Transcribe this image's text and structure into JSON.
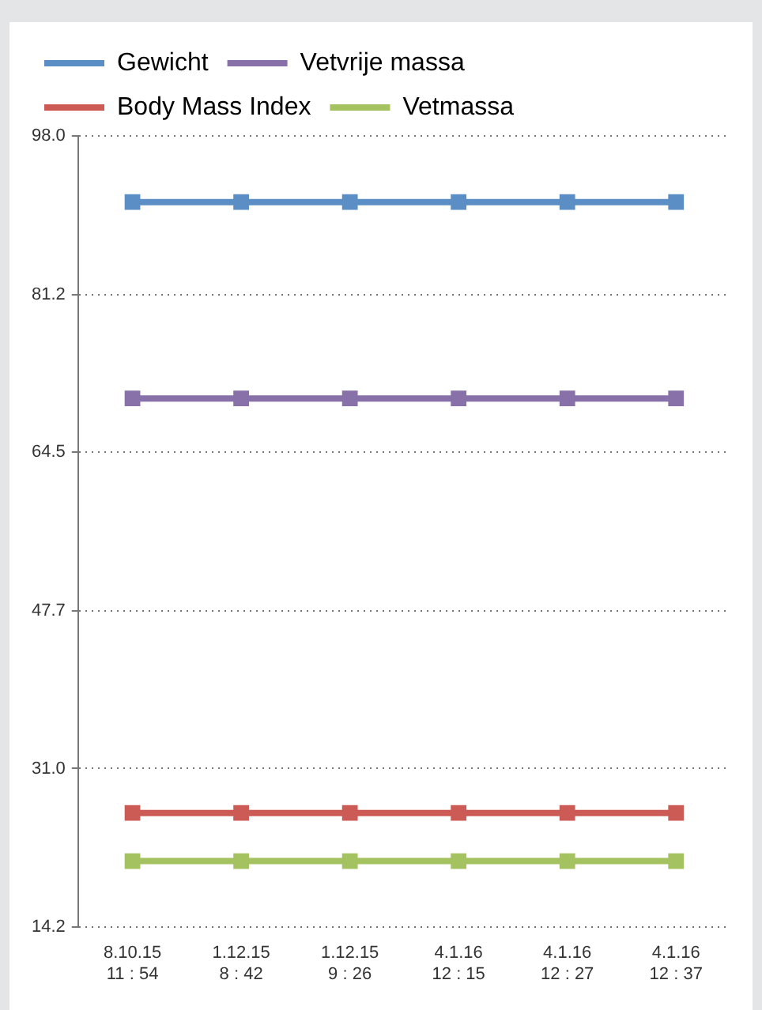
{
  "chart_data": {
    "type": "line",
    "categories": [
      "8.10.15\n11 : 54",
      "1.12.15\n8 : 42",
      "1.12.15\n9 : 26",
      "4.1.16\n12 : 15",
      "4.1.16\n12 : 27",
      "4.1.16\n12 : 37"
    ],
    "series": [
      {
        "name": "Gewicht",
        "color": "#5b8ec4",
        "values": [
          91.0,
          91.0,
          91.0,
          91.0,
          91.0,
          91.0
        ]
      },
      {
        "name": "Vetvrije massa",
        "color": "#8771a8",
        "values": [
          70.2,
          70.2,
          70.2,
          70.2,
          70.2,
          70.2
        ]
      },
      {
        "name": "Body Mass Index",
        "color": "#cd5b55",
        "values": [
          26.3,
          26.3,
          26.3,
          26.3,
          26.3,
          26.3
        ]
      },
      {
        "name": "Vetmassa",
        "color": "#a4c25f",
        "values": [
          21.2,
          21.2,
          21.2,
          21.2,
          21.2,
          21.2
        ]
      }
    ],
    "ylim": [
      14.2,
      98.0
    ],
    "yticks": [
      {
        "value": 14.2,
        "label": "14.2"
      },
      {
        "value": 31.0,
        "label": "31.0"
      },
      {
        "value": 47.7,
        "label": "47.7"
      },
      {
        "value": 64.5,
        "label": "64.5"
      },
      {
        "value": 81.2,
        "label": "81.2"
      },
      {
        "value": 98.0,
        "label": "98.0"
      }
    ],
    "grid": "y",
    "legend": "top left",
    "marker": "square",
    "line_style": "solid"
  }
}
